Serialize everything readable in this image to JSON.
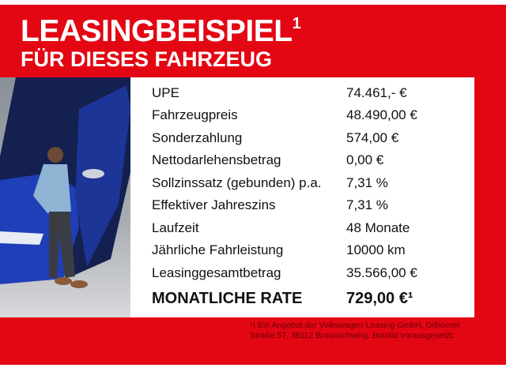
{
  "header": {
    "title": "LEASINGBEISPIEL",
    "title_sup": "1",
    "subtitle": "FÜR DIESES FAHRZEUG"
  },
  "colors": {
    "brand_red": "#e30613",
    "car_blue": "#1f3fb8"
  },
  "rows": [
    {
      "label": "UPE",
      "value": "74.461,- €"
    },
    {
      "label": "Fahrzeugpreis",
      "value": "48.490,00 €"
    },
    {
      "label": "Sonderzahlung",
      "value": "574,00 €"
    },
    {
      "label": "Nettodarlehensbetrag",
      "value": "0,00 €"
    },
    {
      "label": "Sollzinssatz (gebunden) p.a.",
      "value": "7,31 %"
    },
    {
      "label": "Effektiver Jahreszins",
      "value": "7,31 %"
    },
    {
      "label": "Laufzeit",
      "value": "48 Monate"
    },
    {
      "label": "Jährliche Fahrleistung",
      "value": "10000 km"
    },
    {
      "label": "Leasinggesamtbetrag",
      "value": "35.566,00 €"
    }
  ],
  "rate": {
    "label": "MONATLICHE RATE",
    "value": "729,00 €¹"
  },
  "footnote": {
    "line1": "¹) Ein Angebot der Volkswagen Leasing GmbH, Gifhorner",
    "line2": "Straße 57, 38112 Braunschweig. Bonität vorausgesetzt."
  }
}
